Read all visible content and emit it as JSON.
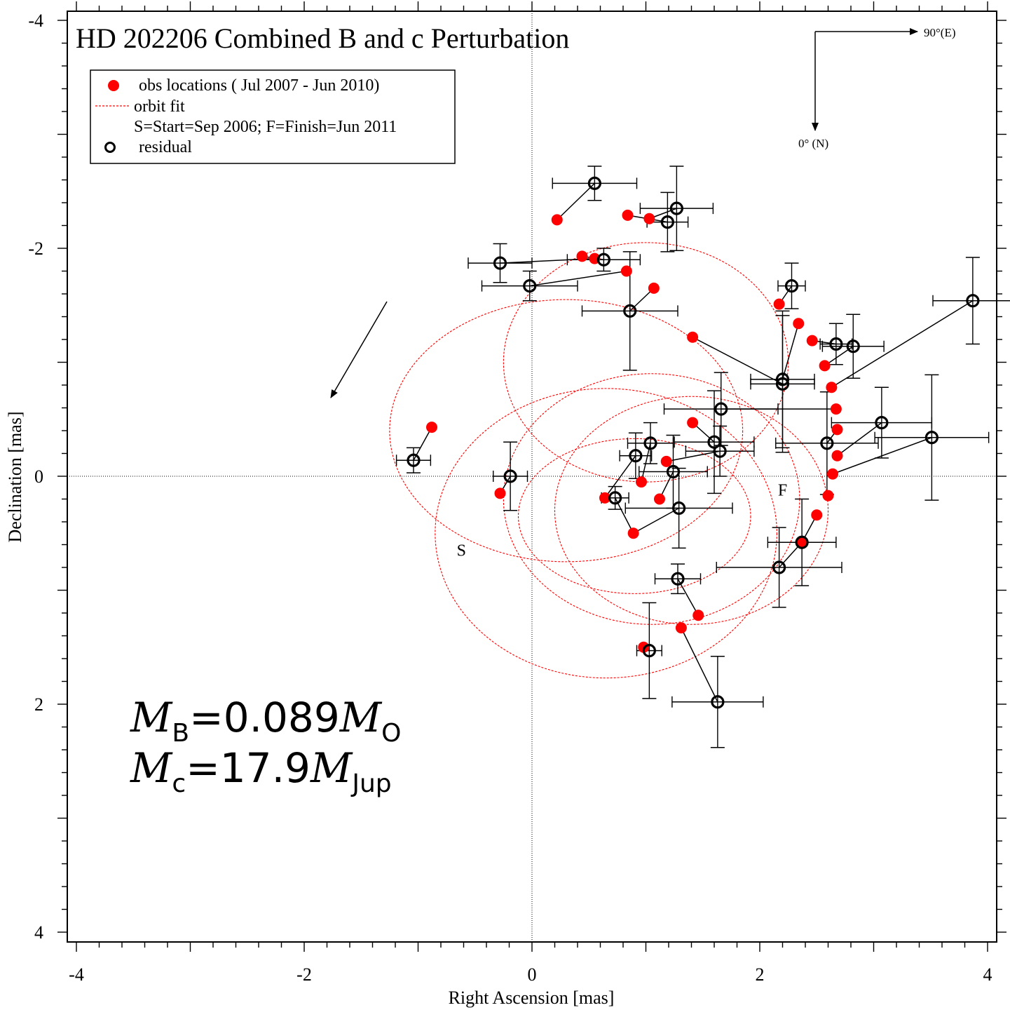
{
  "chart_data": {
    "type": "scatter",
    "title": "HD 202206 Combined B and c Perturbation",
    "xlabel": "Right Ascension [mas]",
    "ylabel": "Declination [mas]",
    "xlim": [
      -4,
      4
    ],
    "ylim": [
      4,
      -4
    ],
    "y_axis_inverted": true,
    "x_ticks": [
      -4,
      -2,
      0,
      2,
      4
    ],
    "y_ticks": [
      -4,
      -2,
      0,
      2,
      4
    ],
    "grid": false,
    "zero_lines": true,
    "legend_position": "top-left",
    "legend": {
      "obs": "obs locations ( Jul 2007 - Jun 2010)",
      "orbit": "orbit fit",
      "start_finish": "S=Start=Sep 2006; F=Finish=Jun 2011",
      "residual": "residual"
    },
    "compass": {
      "east_label": "90°(E)",
      "north_label": "0° (N)"
    },
    "start_marker": {
      "label": "S",
      "x": -0.62,
      "y": 0.65
    },
    "finish_marker": {
      "label": "F",
      "x": 2.2,
      "y": 0.12
    },
    "annotations": {
      "mass_b_symbol": "M",
      "mass_b_subscript": "B",
      "mass_b_value": "=0.089",
      "mass_b_unit_symbol": "M",
      "mass_b_unit_subscript": "O",
      "mass_c_symbol": "M",
      "mass_c_subscript": "c",
      "mass_c_value": "=17.9",
      "mass_c_unit_symbol": "M",
      "mass_c_unit_subscript": "Jup"
    },
    "orbit_fit": [
      {
        "cx": 0.9,
        "cy": 0.35,
        "rx": 1.02,
        "ry": 0.68
      },
      {
        "cx": 1.0,
        "cy": -1.0,
        "rx": 1.25,
        "ry": 1.05
      },
      {
        "cx": 0.3,
        "cy": -0.4,
        "rx": 1.55,
        "ry": 1.15
      },
      {
        "cx": 1.4,
        "cy": 0.3,
        "rx": 1.2,
        "ry": 1.0
      },
      {
        "cx": 0.65,
        "cy": 0.5,
        "rx": 1.5,
        "ry": 1.27
      },
      {
        "cx": 1.05,
        "cy": 0.2,
        "rx": 1.3,
        "ry": 1.1
      }
    ],
    "series": [
      {
        "name": "obs locations ( Jul 2007 - Jun 2010)",
        "color": "#ff0000",
        "points": [
          {
            "x": 0.22,
            "y": -2.25
          },
          {
            "x": 0.84,
            "y": -2.29
          },
          {
            "x": 1.03,
            "y": -2.26
          },
          {
            "x": 0.44,
            "y": -1.93
          },
          {
            "x": 0.55,
            "y": -1.91
          },
          {
            "x": 0.83,
            "y": -1.8
          },
          {
            "x": 1.07,
            "y": -1.65
          },
          {
            "x": 1.41,
            "y": -1.22
          },
          {
            "x": 2.17,
            "y": -1.51
          },
          {
            "x": 2.34,
            "y": -1.34
          },
          {
            "x": 2.46,
            "y": -1.19
          },
          {
            "x": 2.57,
            "y": -0.97
          },
          {
            "x": 2.63,
            "y": -0.78
          },
          {
            "x": 2.67,
            "y": -0.59
          },
          {
            "x": 2.68,
            "y": -0.41
          },
          {
            "x": 2.68,
            "y": -0.18
          },
          {
            "x": 2.64,
            "y": -0.02
          },
          {
            "x": 2.6,
            "y": 0.17
          },
          {
            "x": 2.5,
            "y": 0.34
          },
          {
            "x": 2.37,
            "y": 0.58
          },
          {
            "x": 1.41,
            "y": -0.47
          },
          {
            "x": 1.18,
            "y": -0.13
          },
          {
            "x": 0.96,
            "y": 0.05
          },
          {
            "x": 0.64,
            "y": 0.19
          },
          {
            "x": 1.12,
            "y": 0.2
          },
          {
            "x": 0.89,
            "y": 0.5
          },
          {
            "x": -0.88,
            "y": -0.43
          },
          {
            "x": -0.28,
            "y": 0.15
          },
          {
            "x": 1.46,
            "y": 1.22
          },
          {
            "x": 1.31,
            "y": 1.33
          },
          {
            "x": 0.98,
            "y": 1.5
          }
        ]
      },
      {
        "name": "residual",
        "color": "#000000",
        "points": [
          {
            "x": 0.55,
            "y": -2.57,
            "xerr": 0.37,
            "yerr": 0.15,
            "obs": 0
          },
          {
            "x": 1.27,
            "y": -2.35,
            "xerr": 0.32,
            "yerr": 0.37,
            "obs": 2
          },
          {
            "x": 1.19,
            "y": -2.23,
            "xerr": 0.18,
            "yerr": 0.26,
            "obs": 1
          },
          {
            "x": 0.63,
            "y": -1.9,
            "xerr": 0.32,
            "yerr": 0.1,
            "obs": 3
          },
          {
            "x": -0.28,
            "y": -1.87,
            "xerr": 0.28,
            "yerr": 0.17,
            "obs": 4
          },
          {
            "x": -0.02,
            "y": -1.67,
            "xerr": 0.42,
            "yerr": 0.13,
            "obs": 5
          },
          {
            "x": 0.86,
            "y": -1.45,
            "xerr": 0.42,
            "yerr": 0.52,
            "obs": 6
          },
          {
            "x": 2.28,
            "y": -1.67,
            "xerr": 0.12,
            "yerr": 0.2,
            "obs": 8
          },
          {
            "x": 2.2,
            "y": -0.85,
            "xerr": 0.28,
            "yerr": 0.6,
            "obs": 9
          },
          {
            "x": 2.2,
            "y": -0.81,
            "xerr": 0.28,
            "yerr": 0.6,
            "obs": 7
          },
          {
            "x": 2.67,
            "y": -1.16,
            "xerr": 0.14,
            "yerr": 0.18,
            "obs": 10
          },
          {
            "x": 2.82,
            "y": -1.14,
            "xerr": 0.27,
            "yerr": 0.28,
            "obs": 11
          },
          {
            "x": 3.87,
            "y": -1.54,
            "xerr": 0.35,
            "yerr": 0.38,
            "obs": 12
          },
          {
            "x": 1.66,
            "y": -0.59,
            "xerr": 0.5,
            "yerr": 0.32,
            "obs": 13
          },
          {
            "x": 1.6,
            "y": -0.3,
            "xerr": 0.35,
            "yerr": 0.45,
            "obs": 20
          },
          {
            "x": 1.65,
            "y": -0.22,
            "xerr": 0.3,
            "yerr": 0.22,
            "obs": 21
          },
          {
            "x": 2.59,
            "y": -0.29,
            "xerr": 0.45,
            "yerr": 0.45,
            "obs": 14
          },
          {
            "x": 3.07,
            "y": -0.47,
            "xerr": 0.44,
            "yerr": 0.31,
            "obs": 15
          },
          {
            "x": 3.51,
            "y": -0.34,
            "xerr": 0.5,
            "yerr": 0.55,
            "obs": 16
          },
          {
            "x": 1.04,
            "y": -0.29,
            "xerr": 0.2,
            "yerr": 0.18,
            "obs": 22
          },
          {
            "x": 0.91,
            "y": -0.18,
            "xerr": 0.14,
            "yerr": 0.2,
            "obs": 23
          },
          {
            "x": 1.24,
            "y": -0.04,
            "xerr": 0.3,
            "yerr": 0.32,
            "obs": 24
          },
          {
            "x": 0.73,
            "y": 0.19,
            "xerr": 0.12,
            "yerr": 0.1,
            "obs": 25
          },
          {
            "x": 1.29,
            "y": 0.28,
            "xerr": 0.47,
            "yerr": 0.35,
            "obs": 25
          },
          {
            "x": -0.19,
            "y": 0.0,
            "xerr": 0.15,
            "yerr": 0.3,
            "obs": 27
          },
          {
            "x": -1.04,
            "y": -0.14,
            "xerr": 0.15,
            "yerr": 0.11,
            "obs": 26
          },
          {
            "x": 2.37,
            "y": 0.58,
            "xerr": 0.3,
            "yerr": 0.38,
            "obs": 18
          },
          {
            "x": 2.17,
            "y": 0.8,
            "xerr": 0.55,
            "yerr": 0.35,
            "obs": 19
          },
          {
            "x": 1.28,
            "y": 0.9,
            "xerr": 0.2,
            "yerr": 0.13,
            "obs": 28
          },
          {
            "x": 1.03,
            "y": 1.53,
            "xerr": 0.11,
            "yerr": 0.42,
            "obs": 30
          },
          {
            "x": 1.63,
            "y": 1.98,
            "xerr": 0.4,
            "yerr": 0.4,
            "obs": 29
          }
        ]
      }
    ]
  }
}
